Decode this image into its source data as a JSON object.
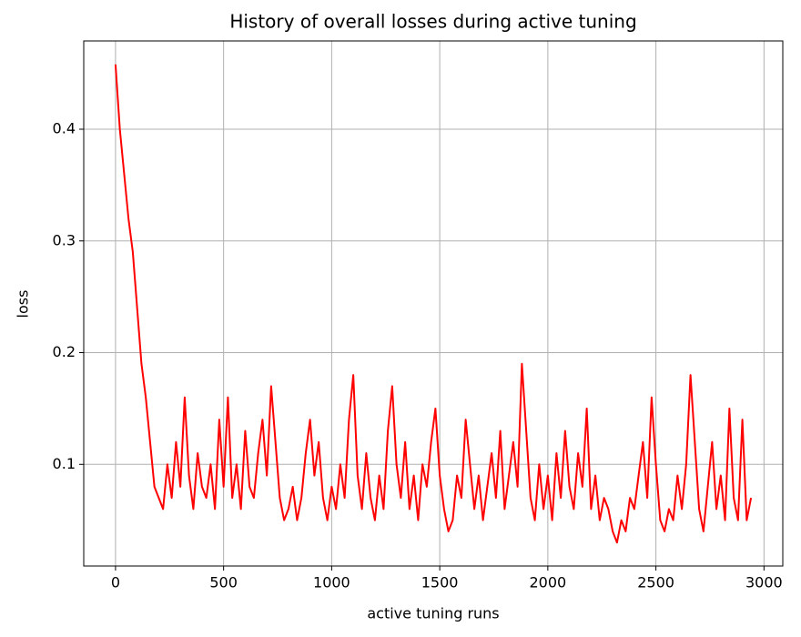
{
  "chart_data": {
    "type": "line",
    "title": "History of overall losses during active tuning",
    "x_label": "active tuning runs",
    "y_label": "loss",
    "x": [
      0,
      20,
      40,
      60,
      80,
      100,
      120,
      140,
      160,
      180,
      200,
      220,
      240,
      260,
      280,
      300,
      320,
      340,
      360,
      380,
      400,
      420,
      440,
      460,
      480,
      500,
      520,
      540,
      560,
      580,
      600,
      620,
      640,
      660,
      680,
      700,
      720,
      740,
      760,
      780,
      800,
      820,
      840,
      860,
      880,
      900,
      920,
      940,
      960,
      980,
      1000,
      1020,
      1040,
      1060,
      1080,
      1100,
      1120,
      1140,
      1160,
      1180,
      1200,
      1220,
      1240,
      1260,
      1280,
      1300,
      1320,
      1340,
      1360,
      1380,
      1400,
      1420,
      1440,
      1460,
      1480,
      1500,
      1520,
      1540,
      1560,
      1580,
      1600,
      1620,
      1640,
      1660,
      1680,
      1700,
      1720,
      1740,
      1760,
      1780,
      1800,
      1820,
      1840,
      1860,
      1880,
      1900,
      1920,
      1940,
      1960,
      1980,
      2000,
      2020,
      2040,
      2060,
      2080,
      2100,
      2120,
      2140,
      2160,
      2180,
      2200,
      2220,
      2240,
      2260,
      2280,
      2300,
      2320,
      2340,
      2360,
      2380,
      2400,
      2420,
      2440,
      2460,
      2480,
      2500,
      2520,
      2540,
      2560,
      2580,
      2600,
      2620,
      2640,
      2660,
      2680,
      2700,
      2720,
      2740,
      2760,
      2780,
      2800,
      2820,
      2840,
      2860,
      2880,
      2900,
      2920,
      2940
    ],
    "series": [
      {
        "name": "loss",
        "color": "#ff0000",
        "values": [
          0.458,
          0.4,
          0.36,
          0.32,
          0.29,
          0.24,
          0.19,
          0.16,
          0.12,
          0.08,
          0.07,
          0.06,
          0.1,
          0.07,
          0.12,
          0.08,
          0.16,
          0.09,
          0.06,
          0.11,
          0.08,
          0.07,
          0.1,
          0.06,
          0.14,
          0.08,
          0.16,
          0.07,
          0.1,
          0.06,
          0.13,
          0.08,
          0.07,
          0.11,
          0.14,
          0.09,
          0.17,
          0.12,
          0.07,
          0.05,
          0.06,
          0.08,
          0.05,
          0.07,
          0.11,
          0.14,
          0.09,
          0.12,
          0.07,
          0.05,
          0.08,
          0.06,
          0.1,
          0.07,
          0.14,
          0.18,
          0.09,
          0.06,
          0.11,
          0.07,
          0.05,
          0.09,
          0.06,
          0.13,
          0.17,
          0.1,
          0.07,
          0.12,
          0.06,
          0.09,
          0.05,
          0.1,
          0.08,
          0.12,
          0.15,
          0.09,
          0.06,
          0.04,
          0.05,
          0.09,
          0.07,
          0.14,
          0.1,
          0.06,
          0.09,
          0.05,
          0.08,
          0.11,
          0.07,
          0.13,
          0.06,
          0.09,
          0.12,
          0.08,
          0.19,
          0.13,
          0.07,
          0.05,
          0.1,
          0.06,
          0.09,
          0.05,
          0.11,
          0.07,
          0.13,
          0.08,
          0.06,
          0.11,
          0.08,
          0.15,
          0.06,
          0.09,
          0.05,
          0.07,
          0.06,
          0.04,
          0.03,
          0.05,
          0.04,
          0.07,
          0.06,
          0.09,
          0.12,
          0.07,
          0.16,
          0.1,
          0.05,
          0.04,
          0.06,
          0.05,
          0.09,
          0.06,
          0.1,
          0.18,
          0.12,
          0.06,
          0.04,
          0.08,
          0.12,
          0.06,
          0.09,
          0.05,
          0.15,
          0.07,
          0.05,
          0.14,
          0.05,
          0.07
        ]
      }
    ],
    "xlim": [
      -147,
      3087
    ],
    "ylim": [
      0.009,
      0.479
    ],
    "xticks": [
      0,
      500,
      1000,
      1500,
      2000,
      2500,
      3000
    ],
    "yticks": [
      0.1,
      0.2,
      0.3,
      0.4
    ],
    "grid": true
  }
}
